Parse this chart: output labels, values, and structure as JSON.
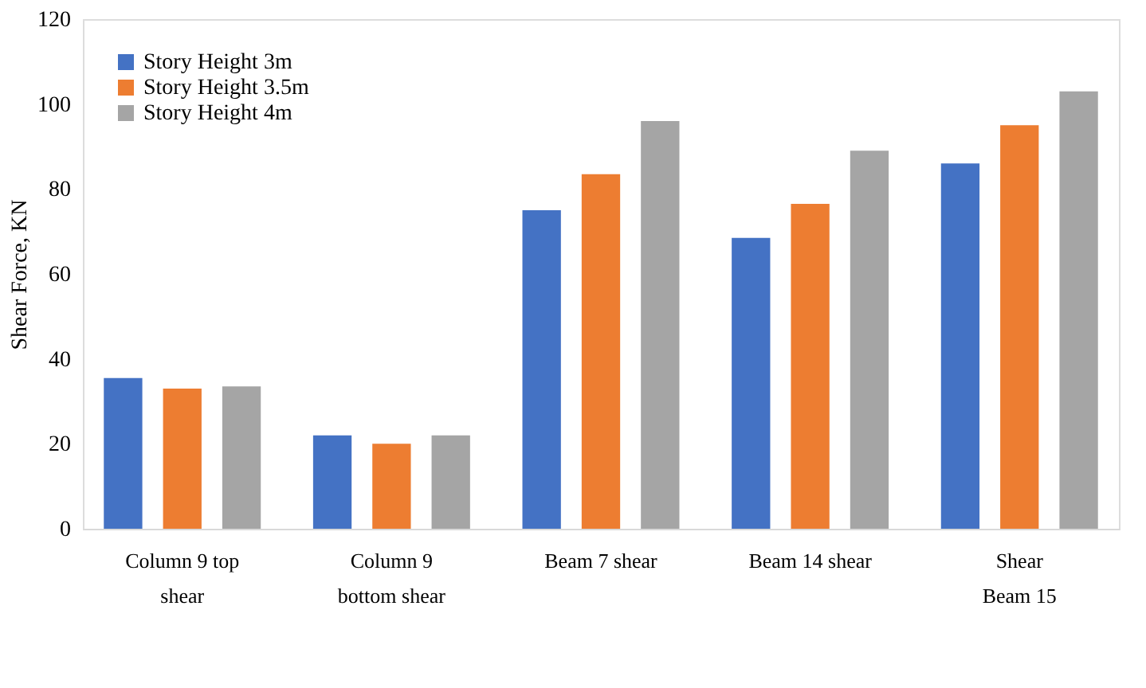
{
  "chart_data": {
    "type": "bar",
    "ylabel": "Shear Force, KN",
    "categories": [
      "Column 9 top\nshear",
      "Column 9\nbottom shear",
      "Beam 7 shear",
      "Beam 14 shear",
      "Shear\nBeam 15"
    ],
    "series": [
      {
        "name": "Story Height 3m",
        "color": "#4472c4",
        "values": [
          35.5,
          22,
          75,
          68.5,
          86
        ]
      },
      {
        "name": "Story Height 3.5m",
        "color": "#ed7d31",
        "values": [
          33,
          20,
          83.5,
          76.5,
          95
        ]
      },
      {
        "name": "Story Height 4m",
        "color": "#a5a5a5",
        "values": [
          33.5,
          22,
          96,
          89,
          103
        ]
      }
    ],
    "ylim": [
      0,
      120
    ],
    "yticks": [
      0,
      20,
      40,
      60,
      80,
      100,
      120
    ],
    "grid": false,
    "legend": "top left"
  }
}
